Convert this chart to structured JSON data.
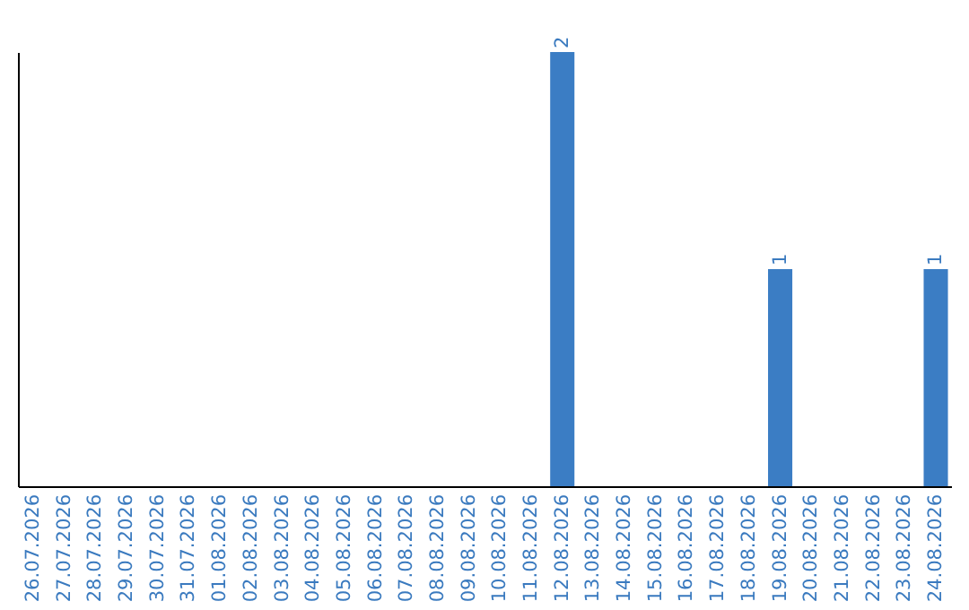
{
  "chart_data": {
    "type": "bar",
    "categories": [
      "26.07.2026",
      "27.07.2026",
      "28.07.2026",
      "29.07.2026",
      "30.07.2026",
      "31.07.2026",
      "01.08.2026",
      "02.08.2026",
      "03.08.2026",
      "04.08.2026",
      "05.08.2026",
      "06.08.2026",
      "07.08.2026",
      "08.08.2026",
      "09.08.2026",
      "10.08.2026",
      "11.08.2026",
      "12.08.2026",
      "13.08.2026",
      "14.08.2026",
      "15.08.2026",
      "16.08.2026",
      "17.08.2026",
      "18.08.2026",
      "19.08.2026",
      "20.08.2026",
      "21.08.2026",
      "22.08.2026",
      "23.08.2026",
      "24.08.2026"
    ],
    "values": [
      null,
      null,
      null,
      null,
      null,
      null,
      null,
      null,
      null,
      null,
      null,
      null,
      null,
      null,
      null,
      null,
      null,
      2,
      null,
      null,
      null,
      null,
      null,
      null,
      1,
      null,
      null,
      null,
      null,
      1
    ],
    "value_labels": [
      null,
      null,
      null,
      null,
      null,
      null,
      null,
      null,
      null,
      null,
      null,
      null,
      null,
      null,
      null,
      null,
      null,
      "2",
      null,
      null,
      null,
      null,
      null,
      null,
      "1",
      null,
      null,
      null,
      null,
      "1"
    ],
    "color": "#3b7dc4"
  }
}
